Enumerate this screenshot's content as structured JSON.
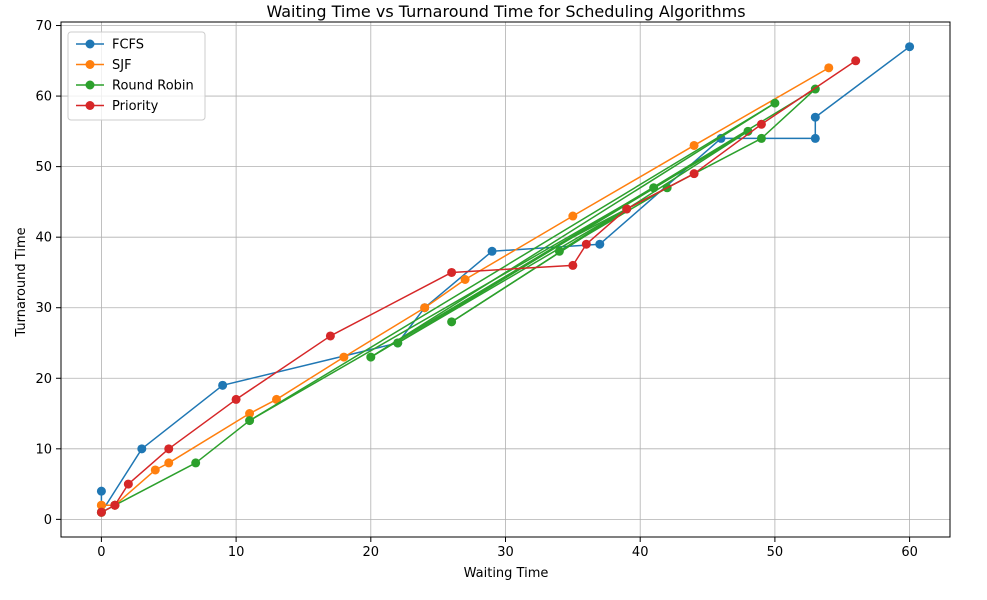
{
  "chart_data": {
    "type": "line",
    "title": "Waiting Time vs Turnaround Time for Scheduling Algorithms",
    "xlabel": "Waiting Time",
    "ylabel": "Turnaround Time",
    "xlim": [
      -3,
      63
    ],
    "ylim": [
      -2.5,
      70.5
    ],
    "xticks": [
      0,
      10,
      20,
      30,
      40,
      50,
      60
    ],
    "yticks": [
      0,
      10,
      20,
      30,
      40,
      50,
      60,
      70
    ],
    "grid": true,
    "legend_position": "top-left",
    "series": [
      {
        "name": "FCFS",
        "color": "#1f77b4",
        "x": [
          0,
          0,
          3,
          9,
          22,
          24,
          29,
          37,
          46,
          53,
          53,
          60
        ],
        "y": [
          4,
          1,
          10,
          19,
          25,
          30,
          38,
          39,
          54,
          54,
          57,
          67
        ]
      },
      {
        "name": "SJF",
        "color": "#ff7f0e",
        "x": [
          0,
          0,
          0,
          1,
          4,
          5,
          11,
          13,
          18,
          24,
          27,
          35,
          44,
          54
        ],
        "y": [
          1,
          2,
          2,
          2,
          7,
          8,
          15,
          17,
          23,
          30,
          34,
          43,
          53,
          64
        ]
      },
      {
        "name": "Round Robin",
        "color": "#2ca02c",
        "x": [
          0,
          1,
          7,
          11,
          20,
          22,
          26,
          34,
          39,
          41,
          42,
          48,
          49,
          50,
          53
        ],
        "y": [
          1,
          2,
          8,
          14,
          23,
          25,
          28,
          38,
          44,
          47,
          47,
          55,
          54,
          59,
          61
        ],
        "segments": [
          [
            [
              0,
              1
            ],
            [
              1,
              2
            ]
          ],
          [
            [
              1,
              2
            ],
            [
              7,
              8
            ]
          ],
          [
            [
              7,
              8
            ],
            [
              11,
              14
            ]
          ],
          [
            [
              11,
              14
            ],
            [
              50,
              59
            ]
          ],
          [
            [
              50,
              59
            ],
            [
              20,
              23
            ]
          ],
          [
            [
              20,
              23
            ],
            [
              41,
              47
            ]
          ],
          [
            [
              41,
              47
            ],
            [
              22,
              25
            ]
          ],
          [
            [
              22,
              25
            ],
            [
              48,
              55
            ]
          ],
          [
            [
              48,
              55
            ],
            [
              26,
              28
            ]
          ],
          [
            [
              26,
              28
            ],
            [
              39,
              44
            ]
          ],
          [
            [
              39,
              44
            ],
            [
              34,
              38
            ]
          ],
          [
            [
              34,
              38
            ],
            [
              42,
              47
            ]
          ],
          [
            [
              42,
              47
            ],
            [
              49,
              54
            ]
          ],
          [
            [
              49,
              54
            ],
            [
              53,
              61
            ]
          ],
          [
            [
              53,
              61
            ],
            [
              34,
              39
            ]
          ],
          [
            [
              34,
              39
            ],
            [
              42,
              47
            ]
          ],
          [
            [
              11,
              14
            ],
            [
              41,
              47
            ]
          ],
          [
            [
              20,
              23
            ],
            [
              48,
              55
            ]
          ],
          [
            [
              22,
              25
            ],
            [
              39,
              44
            ]
          ]
        ]
      },
      {
        "name": "Priority",
        "color": "#d62728",
        "x": [
          0,
          1,
          1,
          2,
          5,
          10,
          17,
          26,
          35,
          36,
          39,
          44,
          49,
          56
        ],
        "y": [
          1,
          2,
          2,
          5,
          10,
          17,
          26,
          35,
          36,
          39,
          44,
          49,
          56,
          65
        ]
      }
    ]
  }
}
